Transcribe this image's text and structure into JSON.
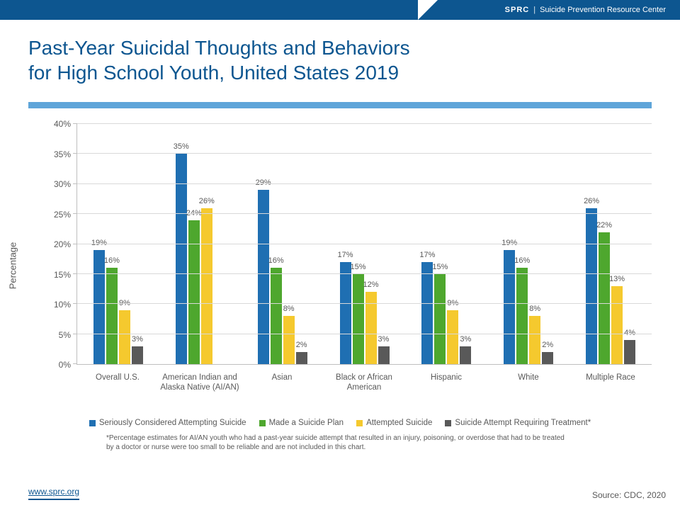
{
  "brand": {
    "abbr": "SPRC",
    "full": "Suicide Prevention Resource Center"
  },
  "title_line1": "Past-Year Suicidal Thoughts and Behaviors",
  "title_line2": "for High School Youth, United States 2019",
  "chart": {
    "type": "bar",
    "y_axis_title": "Percentage",
    "ylim": [
      0,
      40
    ],
    "ytick_step": 5,
    "y_suffix": "%",
    "grid_color": "#d9d9d9",
    "axis_color": "#bfbfbf",
    "text_color": "#595959",
    "background_color": "#ffffff",
    "label_fontsize": 11,
    "series": [
      {
        "name": "Seriously Considered Attempting Suicide",
        "color": "#1f6fb2"
      },
      {
        "name": "Made a Suicide Plan",
        "color": "#4ea72e"
      },
      {
        "name": "Attempted Suicide",
        "color": "#f5c92e"
      },
      {
        "name": "Suicide Attempt Requiring Treatment*",
        "color": "#595959"
      }
    ],
    "categories": [
      {
        "label": "Overall U.S.",
        "values": [
          19,
          16,
          9,
          3
        ]
      },
      {
        "label": "American Indian and Alaska Native (AI/AN)",
        "values": [
          35,
          24,
          26,
          null
        ]
      },
      {
        "label": "Asian",
        "values": [
          29,
          16,
          8,
          2
        ]
      },
      {
        "label": "Black or African American",
        "values": [
          17,
          15,
          12,
          3
        ]
      },
      {
        "label": "Hispanic",
        "values": [
          17,
          15,
          9,
          3
        ]
      },
      {
        "label": "White",
        "values": [
          19,
          16,
          8,
          2
        ]
      },
      {
        "label": "Multiple Race",
        "values": [
          26,
          22,
          13,
          4
        ]
      }
    ]
  },
  "footnote": "*Percentage estimates for AI/AN youth who had a past-year suicide attempt that resulted in an injury, poisoning, or overdose that had to be treated by a doctor or nurse were too small to be reliable and are not included in this chart.",
  "site_url": "www.sprc.org",
  "source": "Source: CDC, 2020",
  "colors": {
    "header_bg": "#0d5690",
    "title_text": "#0d5690",
    "accent_bar": "#5fa5d9"
  }
}
